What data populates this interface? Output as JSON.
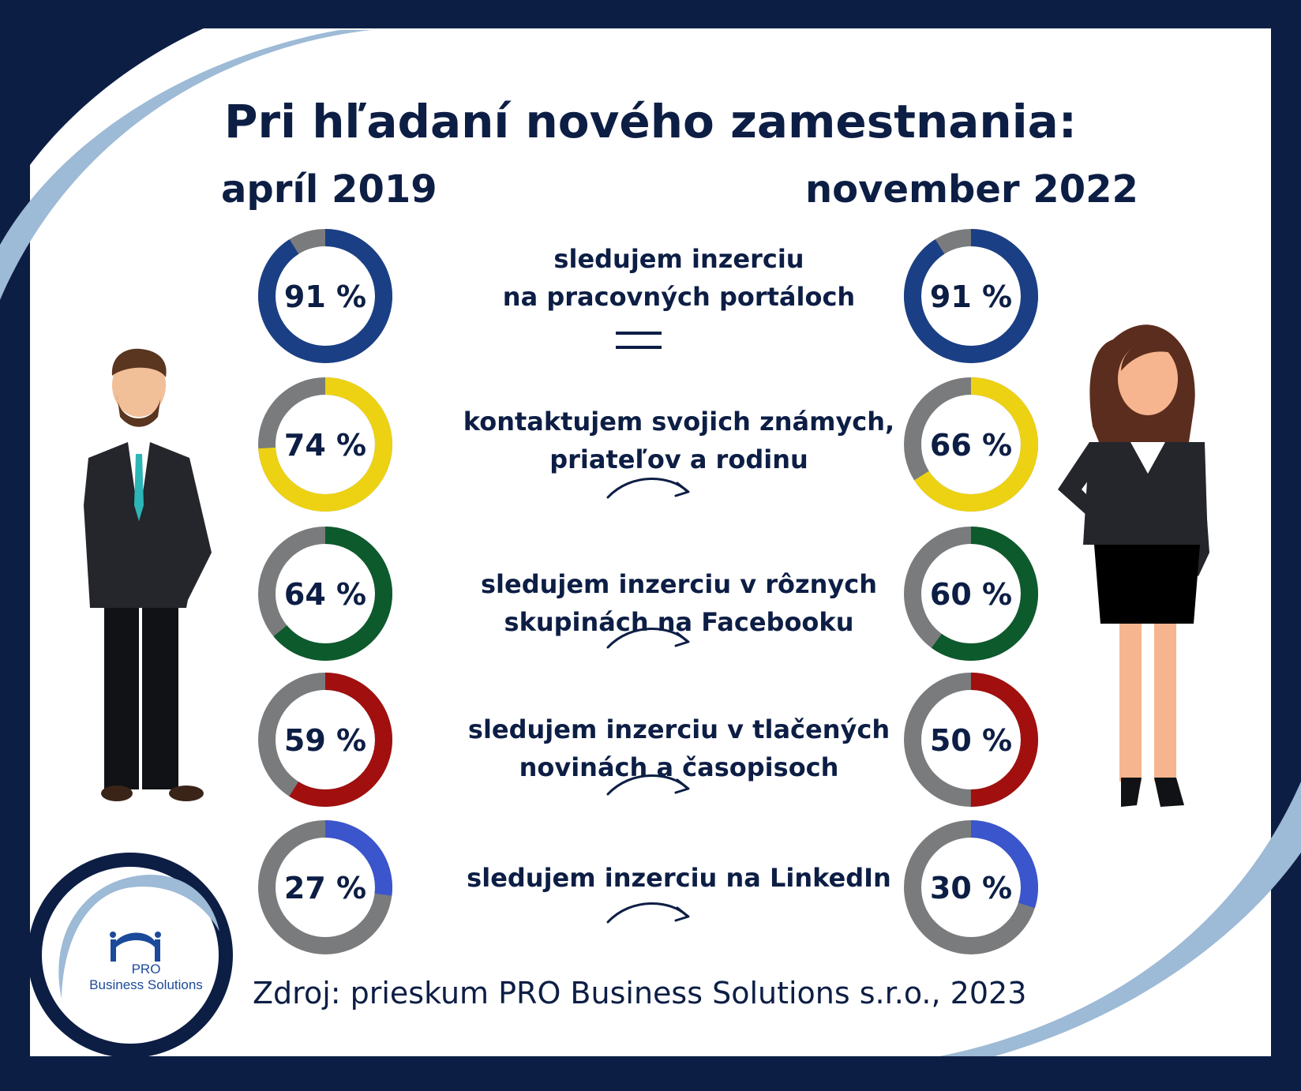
{
  "title": "Pri hľadaní nového zamestnania:",
  "periods": {
    "left": "apríl 2019",
    "right": "november 2022"
  },
  "source": "Zdroj: prieskum PRO Business Solutions s.r.o., 2023",
  "logo": {
    "line1": "PRO",
    "line2": "Business Solutions"
  },
  "colors": {
    "navy": "#0d1e45",
    "ring_gray": "#7a7b7d",
    "frame_light": "#9dbad6"
  },
  "chart_data": {
    "type": "donut",
    "unit": "%",
    "series": [
      {
        "name": "apríl 2019",
        "values": [
          91,
          74,
          64,
          59,
          27
        ],
        "labels": [
          "91 %",
          "74 %",
          "64 %",
          "59 %",
          "27 %"
        ]
      },
      {
        "name": "november 2022",
        "values": [
          91,
          66,
          60,
          50,
          30
        ],
        "labels": [
          "91 %",
          "66 %",
          "60 %",
          "50 %",
          "30 %"
        ]
      }
    ],
    "categories": [
      {
        "line1": "sledujem inzerciu",
        "line2": "na pracovných portáloch",
        "trend": "equal",
        "color": "#1a3f85"
      },
      {
        "line1": "kontaktujem svojich známych,",
        "line2": "priateľov a rodinu",
        "trend": "arrow",
        "color": "#edd214"
      },
      {
        "line1": "sledujem inzerciu v rôznych",
        "line2": "skupinách na Facebooku",
        "trend": "arrow",
        "color": "#0d5a2c"
      },
      {
        "line1": "sledujem inzerciu v tlačených",
        "line2": "novinách a časopisoch",
        "trend": "arrow",
        "color": "#a10f0f"
      },
      {
        "line1": "sledujem inzerciu na LinkedIn",
        "line2": "",
        "trend": "arrow",
        "color": "#3b55cc"
      }
    ]
  }
}
